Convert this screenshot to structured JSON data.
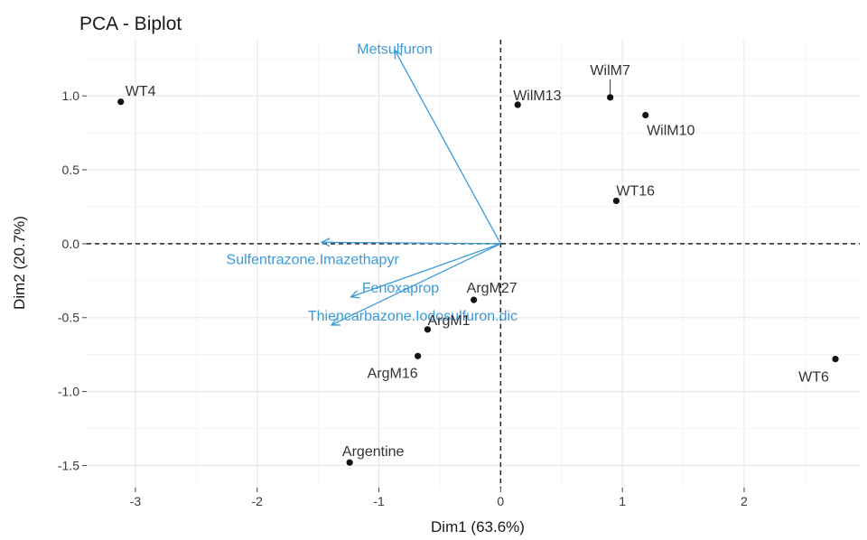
{
  "chart_data": {
    "type": "scatter",
    "subtype": "pca-biplot",
    "title": "PCA - Biplot",
    "xlabel": "Dim1 (63.6%)",
    "ylabel": "Dim2 (20.7%)",
    "xlim": [
      -3.4,
      2.95
    ],
    "ylim": [
      -1.65,
      1.38
    ],
    "x_ticks": [
      -3,
      -2,
      -1,
      0,
      1,
      2
    ],
    "x_tick_labels": [
      "-3",
      "-2",
      "-1",
      "0",
      "1",
      "2"
    ],
    "y_ticks": [
      -1.5,
      -1.0,
      -0.5,
      0.0,
      0.5,
      1.0
    ],
    "y_tick_labels": [
      "-1.5",
      "-1.0",
      "-0.5",
      "0.0",
      "0.5",
      "1.0"
    ],
    "grid": true,
    "colors": {
      "points": "#111111",
      "variables": "#3a9ad9",
      "point_labels": "#333333"
    },
    "individuals": [
      {
        "label": "WT4",
        "x": -3.12,
        "y": 0.96
      },
      {
        "label": "WilM13",
        "x": 0.14,
        "y": 0.94
      },
      {
        "label": "WilM7",
        "x": 0.9,
        "y": 0.99
      },
      {
        "label": "WilM10",
        "x": 1.19,
        "y": 0.87
      },
      {
        "label": "WT16",
        "x": 0.95,
        "y": 0.29
      },
      {
        "label": "ArgM27",
        "x": -0.22,
        "y": -0.38
      },
      {
        "label": "ArgM1",
        "x": -0.6,
        "y": -0.58
      },
      {
        "label": "ArgM16",
        "x": -0.68,
        "y": -0.76
      },
      {
        "label": "Argentine",
        "x": -1.24,
        "y": -1.48
      },
      {
        "label": "WT6",
        "x": 2.75,
        "y": -0.78
      }
    ],
    "variables": [
      {
        "label": "Metsulfuron",
        "x": -0.87,
        "y": 1.31
      },
      {
        "label": "Sulfentrazone.Imazethapyr",
        "x": -1.47,
        "y": 0.01
      },
      {
        "label": "Fenoxaprop",
        "x": -1.23,
        "y": -0.36
      },
      {
        "label": "Thiencarbazone.Iodosulfuron.dic",
        "x": -1.39,
        "y": -0.55
      }
    ]
  }
}
